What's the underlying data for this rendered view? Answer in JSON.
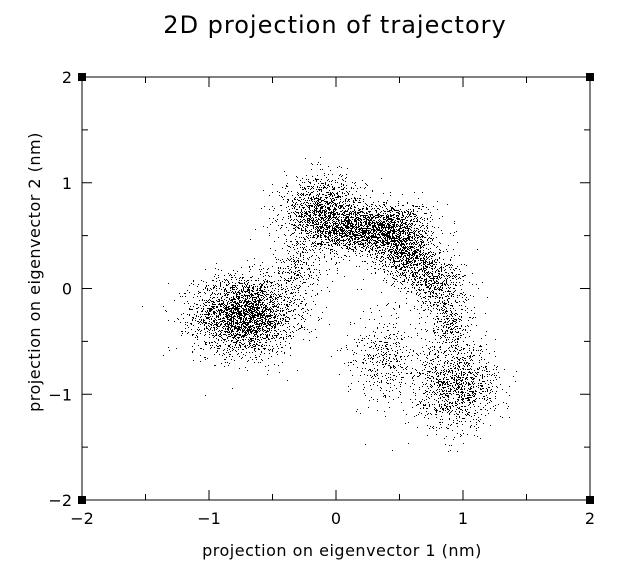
{
  "chart_data": {
    "type": "scatter",
    "title": "2D projection of trajectory",
    "xlabel": "projection on eigenvector 1 (nm)",
    "ylabel": "projection on eigenvector 2 (nm)",
    "xlim": [
      -2,
      2
    ],
    "ylim": [
      -2,
      2
    ],
    "xticks": [
      -2,
      -1,
      0,
      1,
      2
    ],
    "yticks": [
      -2,
      -1,
      0,
      1,
      2
    ],
    "xtick_labels": [
      "−2",
      "−1",
      "0",
      "1",
      "2"
    ],
    "ytick_labels": [
      "−2",
      "−1",
      "0",
      "1",
      "2"
    ],
    "grid": false,
    "marker_color": "#000000",
    "clusters": [
      {
        "center": [
          -0.72,
          -0.25
        ],
        "spread": [
          0.2,
          0.18
        ],
        "points": 3000
      },
      {
        "center": [
          -0.1,
          0.72
        ],
        "spread": [
          0.16,
          0.17
        ],
        "points": 1500
      },
      {
        "center": [
          0.12,
          0.55
        ],
        "spread": [
          0.16,
          0.1
        ],
        "points": 900
      },
      {
        "center": [
          0.42,
          0.55
        ],
        "spread": [
          0.16,
          0.13
        ],
        "points": 1400
      },
      {
        "center": [
          0.58,
          0.3
        ],
        "spread": [
          0.12,
          0.13
        ],
        "points": 800
      },
      {
        "center": [
          0.78,
          0.05
        ],
        "spread": [
          0.12,
          0.13
        ],
        "points": 500
      },
      {
        "center": [
          0.9,
          -0.35
        ],
        "spread": [
          0.09,
          0.16
        ],
        "points": 350
      },
      {
        "center": [
          0.95,
          -0.92
        ],
        "spread": [
          0.16,
          0.2
        ],
        "points": 1200
      },
      {
        "center": [
          0.38,
          -0.65
        ],
        "spread": [
          0.14,
          0.22
        ],
        "points": 450
      },
      {
        "center": [
          -0.3,
          0.15
        ],
        "spread": [
          0.1,
          0.15
        ],
        "points": 250
      }
    ]
  }
}
